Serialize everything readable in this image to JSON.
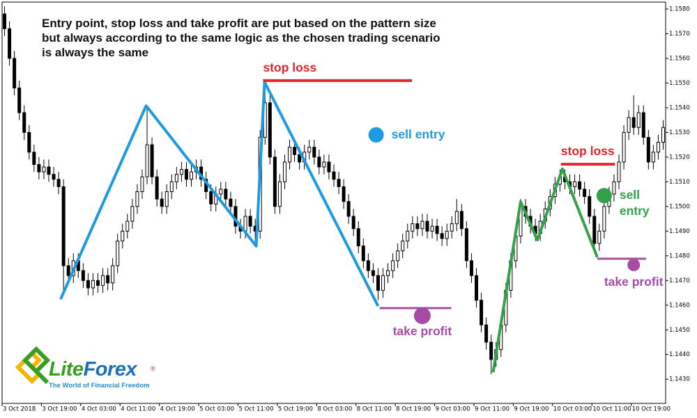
{
  "chart_data": {
    "type": "candlestick",
    "annotation_text": [
      "Entry point, stop loss and take profit are put based on the pattern size",
      "but always according to the same logic as the chosen trading scenario",
      "is always the same"
    ],
    "categories": [
      "3 Oct 2018",
      null,
      null,
      null,
      null,
      null,
      null,
      null,
      "3 Oct 19:00",
      null,
      null,
      null,
      null,
      null,
      null,
      null,
      "4 Oct 03:00",
      null,
      null,
      null,
      null,
      null,
      null,
      null,
      "4 Oct 11:00",
      null,
      null,
      null,
      null,
      null,
      null,
      null,
      "4 Oct 19:00",
      null,
      null,
      null,
      null,
      null,
      null,
      null,
      "5 Oct 03:00",
      null,
      null,
      null,
      null,
      null,
      null,
      null,
      "5 Oct 11:00",
      null,
      null,
      null,
      null,
      null,
      null,
      null,
      "5 Oct 19:00",
      null,
      null,
      null,
      null,
      null,
      null,
      null,
      "8 Oct 03:00",
      null,
      null,
      null,
      null,
      null,
      null,
      null,
      "8 Oct 11:00",
      null,
      null,
      null,
      null,
      null,
      null,
      null,
      "8 Oct 19:00",
      null,
      null,
      null,
      null,
      null,
      null,
      null,
      "9 Oct 03:00",
      null,
      null,
      null,
      null,
      null,
      null,
      null,
      "9 Oct 11:00",
      null,
      null,
      null,
      null,
      null,
      null,
      null,
      "9 Oct 19:00",
      null,
      null,
      null,
      null,
      null,
      null,
      null,
      "10 Oct 03:00",
      null,
      null,
      null,
      null,
      null,
      null,
      null,
      "10 Oct 11:00",
      null,
      null,
      null,
      null,
      null,
      null,
      null,
      "10 Oct 19:00",
      null,
      null,
      null,
      null,
      null,
      null
    ],
    "open": [
      1.1578,
      1.1572,
      1.156,
      1.1548,
      1.1538,
      1.153,
      1.1522,
      1.1517,
      1.1514,
      1.1516,
      1.1513,
      1.1511,
      1.1508,
      1.1476,
      1.1472,
      1.1478,
      1.1474,
      1.147,
      1.1467,
      1.147,
      1.1468,
      1.1472,
      1.1469,
      1.1476,
      1.1486,
      1.149,
      1.1494,
      1.15,
      1.1506,
      1.1512,
      1.1525,
      1.1512,
      1.1503,
      1.15,
      1.1506,
      1.151,
      1.1513,
      1.1515,
      1.1511,
      1.1514,
      1.1516,
      1.1511,
      1.1506,
      1.1501,
      1.1505,
      1.1507,
      1.1503,
      1.15,
      1.1492,
      1.149,
      1.1496,
      1.1492,
      1.149,
      1.1528,
      1.1542,
      1.152,
      1.15,
      1.151,
      1.1518,
      1.1524,
      1.1521,
      1.1518,
      1.1522,
      1.1524,
      1.152,
      1.1516,
      1.1518,
      1.1514,
      1.1511,
      1.1508,
      1.1502,
      1.1496,
      1.1491,
      1.1484,
      1.1478,
      1.1474,
      1.1472,
      1.1466,
      1.1472,
      1.1474,
      1.1478,
      1.1482,
      1.1486,
      1.149,
      1.1493,
      1.1491,
      1.1494,
      1.149,
      1.1492,
      1.1489,
      1.1487,
      1.149,
      1.1493,
      1.1498,
      1.1491,
      1.1478,
      1.1472,
      1.1462,
      1.1452,
      1.1445,
      1.1438,
      1.1442,
      1.1452,
      1.1466,
      1.1478,
      1.1488,
      1.15,
      1.1496,
      1.1492,
      1.1489,
      1.1494,
      1.1499,
      1.1504,
      1.1509,
      1.1512,
      1.151,
      1.1508,
      1.151,
      1.1507,
      1.1504,
      1.1496,
      1.1485,
      1.149,
      1.15,
      1.1505,
      1.151,
      1.1518,
      1.153,
      1.1536,
      1.1532,
      1.1538,
      1.1528,
      1.1518,
      1.1522,
      1.1526
    ],
    "high": [
      1.1581,
      1.1575,
      1.1563,
      1.1551,
      1.1541,
      1.1533,
      1.1525,
      1.152,
      1.1519,
      1.1519,
      1.1516,
      1.1514,
      1.1511,
      1.1479,
      1.1481,
      1.1481,
      1.1477,
      1.1473,
      1.1473,
      1.1473,
      1.1475,
      1.1475,
      1.1479,
      1.1489,
      1.1493,
      1.1497,
      1.1503,
      1.1509,
      1.1515,
      1.154,
      1.1528,
      1.1515,
      1.1506,
      1.1509,
      1.1513,
      1.1516,
      1.1518,
      1.1518,
      1.1517,
      1.1519,
      1.1519,
      1.1514,
      1.1509,
      1.1508,
      1.151,
      1.151,
      1.1506,
      1.1503,
      1.1495,
      1.1499,
      1.1499,
      1.1495,
      1.1531,
      1.155,
      1.1545,
      1.1523,
      1.1513,
      1.1521,
      1.1527,
      1.1527,
      1.1524,
      1.1525,
      1.1527,
      1.1527,
      1.1523,
      1.1521,
      1.1521,
      1.1517,
      1.1514,
      1.1511,
      1.1505,
      1.1499,
      1.1494,
      1.1487,
      1.1481,
      1.1477,
      1.1475,
      1.1475,
      1.1477,
      1.1481,
      1.1485,
      1.1489,
      1.1493,
      1.1496,
      1.1496,
      1.1497,
      1.1497,
      1.1495,
      1.1495,
      1.1492,
      1.1493,
      1.1496,
      1.1503,
      1.1501,
      1.1494,
      1.1481,
      1.1475,
      1.1465,
      1.1455,
      1.1448,
      1.1445,
      1.1455,
      1.1469,
      1.1481,
      1.1491,
      1.1503,
      1.1503,
      1.1499,
      1.1495,
      1.1497,
      1.1502,
      1.1507,
      1.1512,
      1.1515,
      1.1515,
      1.1513,
      1.1513,
      1.1513,
      1.151,
      1.1507,
      1.1499,
      1.1493,
      1.1503,
      1.1508,
      1.1513,
      1.1521,
      1.1533,
      1.1539,
      1.1545,
      1.1541,
      1.1541,
      1.1531,
      1.1525,
      1.1529,
      1.1535
    ],
    "low": [
      1.1569,
      1.1557,
      1.1545,
      1.1535,
      1.1527,
      1.1519,
      1.1514,
      1.1511,
      1.1511,
      1.151,
      1.1508,
      1.1505,
      1.1465,
      1.1469,
      1.1469,
      1.1471,
      1.1467,
      1.1464,
      1.1464,
      1.1465,
      1.1465,
      1.1466,
      1.1466,
      1.1473,
      1.1483,
      1.1487,
      1.1491,
      1.1497,
      1.1503,
      1.1509,
      1.1509,
      1.15,
      1.1497,
      1.1497,
      1.1503,
      1.1507,
      1.151,
      1.1508,
      1.1508,
      1.1511,
      1.1508,
      1.1503,
      1.1498,
      1.1498,
      1.1502,
      1.15,
      1.1497,
      1.1489,
      1.1487,
      1.1487,
      1.1489,
      1.1485,
      1.1487,
      1.1525,
      1.1517,
      1.1497,
      1.1497,
      1.1507,
      1.1515,
      1.1518,
      1.1515,
      1.1515,
      1.1519,
      1.1517,
      1.1513,
      1.1513,
      1.1511,
      1.1508,
      1.1505,
      1.1499,
      1.1493,
      1.1488,
      1.1481,
      1.1475,
      1.1471,
      1.1469,
      1.1462,
      1.1463,
      1.1469,
      1.1471,
      1.1475,
      1.1479,
      1.1483,
      1.1487,
      1.1488,
      1.1488,
      1.1487,
      1.1487,
      1.1486,
      1.1484,
      1.1484,
      1.1487,
      1.149,
      1.1488,
      1.1475,
      1.1469,
      1.1459,
      1.1449,
      1.1442,
      1.1432,
      1.1435,
      1.1439,
      1.1449,
      1.1463,
      1.1475,
      1.1485,
      1.1493,
      1.1489,
      1.1486,
      1.1486,
      1.1491,
      1.1496,
      1.1501,
      1.1506,
      1.1507,
      1.1505,
      1.1505,
      1.1504,
      1.1501,
      1.1493,
      1.1482,
      1.1482,
      1.1487,
      1.1497,
      1.1502,
      1.1507,
      1.1515,
      1.1527,
      1.1529,
      1.1529,
      1.1525,
      1.1515,
      1.1515,
      1.1519,
      1.1523
    ],
    "close": [
      1.1572,
      1.156,
      1.1548,
      1.1538,
      1.153,
      1.1522,
      1.1517,
      1.1514,
      1.1516,
      1.1513,
      1.1511,
      1.1508,
      1.1476,
      1.1472,
      1.1478,
      1.1474,
      1.147,
      1.1467,
      1.147,
      1.1468,
      1.1472,
      1.1469,
      1.1476,
      1.1486,
      1.149,
      1.1494,
      1.15,
      1.1506,
      1.1512,
      1.1525,
      1.1512,
      1.1503,
      1.15,
      1.1506,
      1.151,
      1.1513,
      1.1515,
      1.1511,
      1.1514,
      1.1516,
      1.1511,
      1.1506,
      1.1501,
      1.1505,
      1.1507,
      1.1503,
      1.15,
      1.1492,
      1.149,
      1.1496,
      1.1492,
      1.149,
      1.1528,
      1.1542,
      1.152,
      1.15,
      1.151,
      1.1518,
      1.1524,
      1.1521,
      1.1518,
      1.1522,
      1.1524,
      1.152,
      1.1516,
      1.1518,
      1.1514,
      1.1511,
      1.1508,
      1.1502,
      1.1496,
      1.1491,
      1.1484,
      1.1478,
      1.1474,
      1.1472,
      1.1466,
      1.1472,
      1.1474,
      1.1478,
      1.1482,
      1.1486,
      1.149,
      1.1493,
      1.1491,
      1.1494,
      1.149,
      1.1492,
      1.1489,
      1.1487,
      1.149,
      1.1493,
      1.1498,
      1.1491,
      1.1478,
      1.1472,
      1.1462,
      1.1452,
      1.1445,
      1.1438,
      1.1442,
      1.1452,
      1.1466,
      1.1478,
      1.1488,
      1.15,
      1.1496,
      1.1492,
      1.1489,
      1.1494,
      1.1499,
      1.1504,
      1.1509,
      1.1512,
      1.151,
      1.1508,
      1.151,
      1.1507,
      1.1504,
      1.1496,
      1.1485,
      1.149,
      1.15,
      1.1505,
      1.151,
      1.1518,
      1.153,
      1.1536,
      1.1532,
      1.1538,
      1.1528,
      1.1518,
      1.1522,
      1.1526,
      1.1532
    ],
    "up_color": "#ffffff",
    "down_color": "#000000",
    "wick_color": "#000000",
    "ylim": [
      1.14202,
      1.15828
    ],
    "yticks": [
      {
        "value": 1.143,
        "label": "1.1430"
      },
      {
        "value": 1.144,
        "label": "1.1440"
      },
      {
        "value": 1.145,
        "label": "1.1450"
      },
      {
        "value": 1.146,
        "label": "1.1460"
      },
      {
        "value": 1.147,
        "label": "1.1470"
      },
      {
        "value": 1.148,
        "label": "1.1480"
      },
      {
        "value": 1.149,
        "label": "1.1490"
      },
      {
        "value": 1.15,
        "label": "1.1500"
      },
      {
        "value": 1.151,
        "label": "1.1510"
      },
      {
        "value": 1.152,
        "label": "1.1520"
      },
      {
        "value": 1.153,
        "label": "1.1530"
      },
      {
        "value": 1.154,
        "label": "1.1540"
      },
      {
        "value": 1.155,
        "label": "1.1550"
      },
      {
        "value": 1.156,
        "label": "1.1560"
      },
      {
        "value": 1.157,
        "label": "1.1570"
      },
      {
        "value": 1.158,
        "label": "1.1580"
      }
    ],
    "grid": false,
    "scenarios": [
      {
        "color": "#1e9be0",
        "pattern_x": [
          11.4,
          28.8,
          51.2,
          52.9,
          76.0
        ],
        "pattern_y": [
          1.14624,
          1.15408,
          1.14839,
          1.15504,
          1.14596
        ],
        "stop_loss": {
          "label": "stop loss",
          "price": 1.1551,
          "x": [
            52.6,
            82.9
          ],
          "color": "#e3262b"
        },
        "take_profit": {
          "label": "take profit",
          "price": 1.14588,
          "x": [
            76.3,
            90.9
          ],
          "marker_x": 85.0,
          "marker_price": 1.14557,
          "color": "#a64ca6"
        },
        "entry": {
          "label": "sell entry",
          "x": 75.6,
          "price": 1.1529
        }
      },
      {
        "color": "#33a14a",
        "pattern_x": [
          99.4,
          105.0,
          108.4,
          113.5,
          120.6
        ],
        "pattern_y": [
          1.14328,
          1.15019,
          1.14864,
          1.15152,
          1.14794
        ],
        "stop_loss": {
          "label": "stop loss",
          "price": 1.15171,
          "x": [
            113.2,
            124.2
          ],
          "color": "#e3262b"
        },
        "take_profit": {
          "label": "take profit",
          "price": 1.14788,
          "x": [
            120.6,
            130.5
          ],
          "marker_x": 128.0,
          "marker_price": 1.14763,
          "color": "#a64ca6"
        },
        "entry": {
          "label": "sell entry",
          "x": 122.0,
          "price": 1.15044
        }
      }
    ]
  },
  "logo": {
    "name_parts": [
      "Lite",
      "Forex"
    ],
    "trademark": "®",
    "tagline": "The World of Financial Freedom"
  }
}
